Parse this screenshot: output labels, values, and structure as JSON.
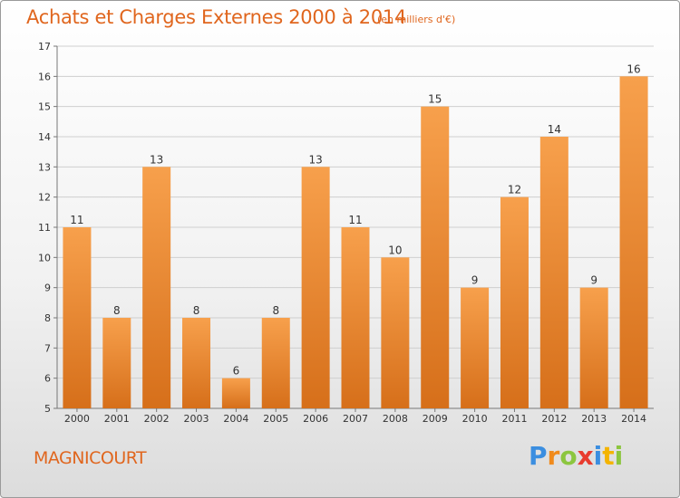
{
  "header": {
    "title": "Achats et Charges Externes 2000 à 2014",
    "unit": "(en milliers d'€)"
  },
  "footer": {
    "commune": "MAGNICOURT",
    "logo": {
      "letters": [
        "P",
        "r",
        "o",
        "x",
        "i",
        "t",
        "i"
      ],
      "colors": [
        "#3b8ee0",
        "#f08a1c",
        "#8cc63f",
        "#e83b2e",
        "#3b8ee0",
        "#f4b400",
        "#8cc63f"
      ]
    }
  },
  "colors": {
    "accent": "#e0661e",
    "bar_light": "#f7a04c",
    "bar_dark": "#d66f1a"
  },
  "chart_data": {
    "type": "bar",
    "categories": [
      "2000",
      "2001",
      "2002",
      "2003",
      "2004",
      "2005",
      "2006",
      "2007",
      "2008",
      "2009",
      "2010",
      "2011",
      "2012",
      "2013",
      "2014"
    ],
    "values": [
      11,
      8,
      13,
      8,
      6,
      8,
      13,
      11,
      10,
      15,
      9,
      12,
      14,
      9,
      16
    ],
    "value_labels": [
      "11",
      "8",
      "13",
      "8",
      "6",
      "8",
      "13",
      "11",
      "10",
      "15",
      "9",
      "12",
      "14",
      "9",
      "16"
    ],
    "y_ticks": [
      "5",
      "6",
      "7",
      "8",
      "9",
      "10",
      "11",
      "12",
      "13",
      "14",
      "15",
      "16",
      "17"
    ],
    "ylim": [
      5,
      17
    ],
    "grid": true
  }
}
